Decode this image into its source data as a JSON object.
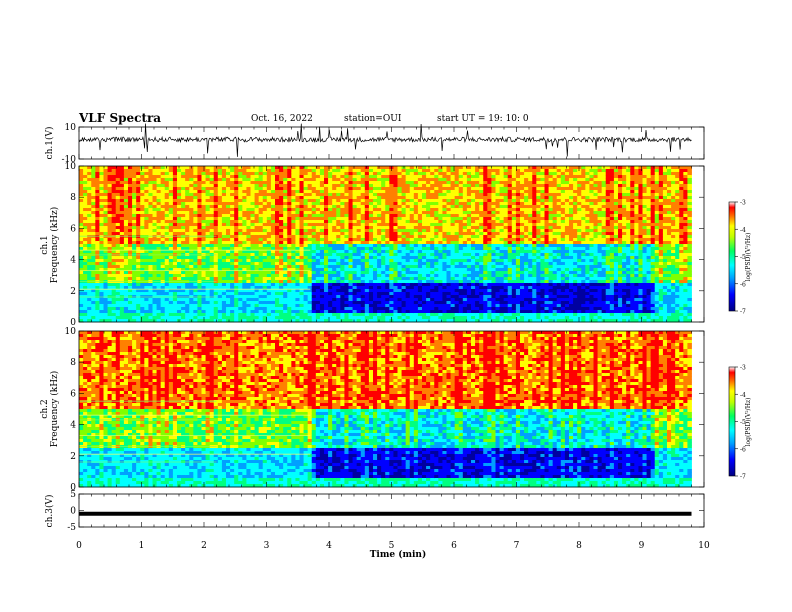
{
  "header": {
    "title": "VLF Spectra",
    "date": "Oct. 16, 2022",
    "station": "station=OUI",
    "start": "start  UT =   19: 10: 0"
  },
  "colors": {
    "colormap": [
      "#0000a0",
      "#0000ff",
      "#00a0ff",
      "#00ffff",
      "#00ff80",
      "#80ff00",
      "#ffff00",
      "#ff8000",
      "#ff0000",
      "#ffffff"
    ],
    "trace": "#000000"
  },
  "chart_data": [
    {
      "type": "line",
      "panel": "ch1-waveform",
      "ylabel": "ch.1(V)",
      "ylim": [
        -10,
        10
      ],
      "yticks": [
        "10",
        "-10"
      ],
      "xlim": [
        0,
        10
      ],
      "description_level": "noisy trace centered near 0 V with spikes"
    },
    {
      "type": "heatmap",
      "panel": "ch1-spectrogram",
      "ylabel_channel": "ch.1",
      "ylabel": "Frequency (kHz)",
      "ylim": [
        0,
        10
      ],
      "yticks": [
        "0",
        "2",
        "4",
        "6",
        "8",
        "10"
      ],
      "xlim": [
        0,
        10
      ],
      "colorbar": {
        "label": "log(PSD)(V²/Hz)",
        "range": [
          -7,
          -3
        ],
        "ticks": [
          "-3",
          "-4",
          "-5",
          "-6",
          "-7"
        ]
      }
    },
    {
      "type": "heatmap",
      "panel": "ch2-spectrogram",
      "ylabel_channel": "ch.2",
      "ylabel": "Frequency (kHz)",
      "ylim": [
        0,
        10
      ],
      "yticks": [
        "0",
        "2",
        "4",
        "6",
        "8",
        "10"
      ],
      "xlim": [
        0,
        10
      ],
      "colorbar": {
        "label": "log(PSD)(V²/Hz)",
        "range": [
          -7,
          -3
        ],
        "ticks": [
          "-3",
          "-4",
          "-5",
          "-6",
          "-7"
        ]
      }
    },
    {
      "type": "line",
      "panel": "ch3-waveform",
      "ylabel": "ch.3(V)",
      "ylim": [
        -5,
        5
      ],
      "yticks": [
        "5",
        "0",
        "-5"
      ],
      "xlim": [
        0,
        10
      ],
      "level": -1
    }
  ],
  "xaxis": {
    "label": "Time (min)",
    "ticks": [
      "0",
      "1",
      "2",
      "3",
      "4",
      "5",
      "6",
      "7",
      "8",
      "9",
      "10"
    ],
    "data_end": 9.8
  }
}
